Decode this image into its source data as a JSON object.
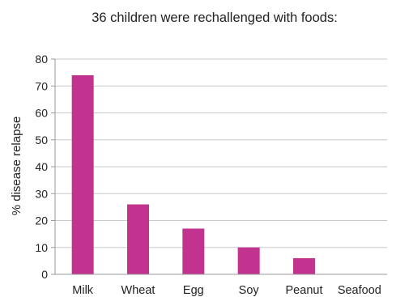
{
  "chart_data": {
    "type": "bar",
    "title": "36 children were rechallenged with foods:",
    "xlabel": "",
    "ylabel": "% disease relapse",
    "categories": [
      "Milk",
      "Wheat",
      "Egg",
      "Soy",
      "Peanut",
      "Seafood"
    ],
    "values": [
      74,
      26,
      17,
      10,
      6,
      0
    ],
    "ylim": [
      0,
      80
    ],
    "yticks": [
      0,
      10,
      20,
      30,
      40,
      50,
      60,
      70,
      80
    ],
    "grid": true,
    "legend": "none",
    "bar_color": "#c2338f",
    "grid_color": "#c8c8c8"
  }
}
